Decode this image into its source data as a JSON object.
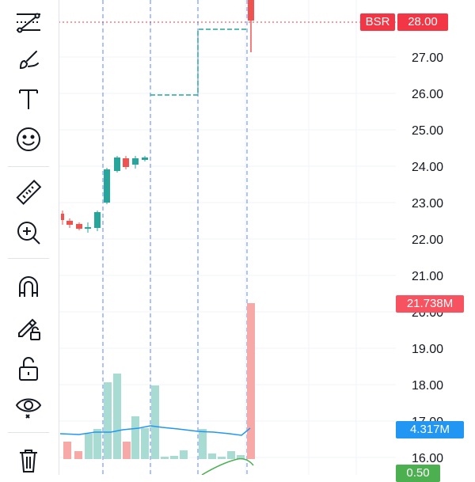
{
  "toolbar": {
    "tools": [
      {
        "name": "trend-line-tools-icon"
      },
      {
        "name": "brush-icon"
      },
      {
        "name": "text-tool-icon"
      },
      {
        "name": "emoji-icon"
      },
      {
        "name": "ruler-icon"
      },
      {
        "name": "zoom-in-icon"
      },
      {
        "name": "magnet-icon"
      },
      {
        "name": "lock-drawings-icon"
      },
      {
        "name": "unlock-icon"
      },
      {
        "name": "eye-icon"
      },
      {
        "name": "trash-icon"
      }
    ]
  },
  "price_scale": {
    "labels": [
      "27.00",
      "26.00",
      "25.00",
      "24.00",
      "23.00",
      "22.00",
      "21.00",
      "20.00",
      "19.00",
      "18.00",
      "17.00",
      "16.00"
    ]
  },
  "tags": {
    "bsr_label": "BSR",
    "bsr_value": "28.00",
    "volume_value": "21.738M",
    "volume_ma_value": "4.317M",
    "lower_value": "0.50"
  },
  "colors": {
    "up": "#26a69a",
    "down": "#ef5350",
    "bsr": "#f23645",
    "ma_line": "#2196f3",
    "grid": "#f0f3fa",
    "dashed_vertical": "#2962ff",
    "lower_indicator": "#4caf50"
  }
}
